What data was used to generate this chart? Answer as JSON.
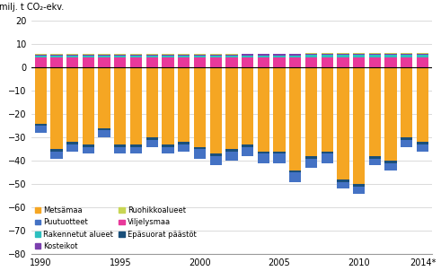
{
  "years": [
    1990,
    1991,
    1992,
    1993,
    1994,
    1995,
    1996,
    1997,
    1998,
    1999,
    2000,
    2001,
    2002,
    2003,
    2004,
    2005,
    2006,
    2007,
    2008,
    2009,
    2010,
    2011,
    2012,
    2013,
    2014
  ],
  "metsamaa": [
    -24,
    -35,
    -32,
    -33,
    -26,
    -33,
    -33,
    -30,
    -33,
    -32,
    -34,
    -37,
    -35,
    -33,
    -36,
    -36,
    -44,
    -38,
    -36,
    -48,
    -50,
    -38,
    -40,
    -30,
    -32
  ],
  "puutuotteet": [
    -3,
    -3,
    -3,
    -3,
    -3,
    -3,
    -3,
    -3,
    -3,
    -3,
    -4,
    -4,
    -4,
    -4,
    -4,
    -4,
    -4,
    -4,
    -4,
    -3,
    -3,
    -3,
    -3,
    -3,
    -3
  ],
  "rakennetut_alueet": [
    0.5,
    0.5,
    0.5,
    0.5,
    0.5,
    0.6,
    0.6,
    0.6,
    0.6,
    0.7,
    0.7,
    0.7,
    0.7,
    0.8,
    0.8,
    0.8,
    0.8,
    0.9,
    0.9,
    0.9,
    0.9,
    1.0,
    1.0,
    1.0,
    1.0
  ],
  "kosteikot": [
    0.5,
    0.5,
    0.5,
    0.5,
    0.5,
    0.5,
    0.5,
    0.5,
    0.5,
    0.5,
    0.5,
    0.5,
    0.5,
    0.5,
    0.5,
    0.5,
    0.5,
    0.5,
    0.5,
    0.5,
    0.5,
    0.5,
    0.5,
    0.5,
    0.5
  ],
  "ruohikkoalueet": [
    0.3,
    0.3,
    0.3,
    0.3,
    0.3,
    0.3,
    0.3,
    0.3,
    0.3,
    0.3,
    0.3,
    0.3,
    0.3,
    0.3,
    0.3,
    0.3,
    0.3,
    0.3,
    0.3,
    0.3,
    0.3,
    0.3,
    0.3,
    0.3,
    0.3
  ],
  "viljelysmaa": [
    4.5,
    4.5,
    4.5,
    4.5,
    4.5,
    4.5,
    4.5,
    4.5,
    4.5,
    4.5,
    4.5,
    4.5,
    4.5,
    4.5,
    4.5,
    4.5,
    4.5,
    4.5,
    4.5,
    4.5,
    4.5,
    4.5,
    4.5,
    4.5,
    4.5
  ],
  "epasuorat_paastot": [
    -1.0,
    -1.0,
    -1.0,
    -1.0,
    -1.0,
    -1.0,
    -1.0,
    -1.0,
    -1.0,
    -1.0,
    -1.0,
    -1.0,
    -1.0,
    -1.0,
    -1.0,
    -1.0,
    -1.0,
    -1.0,
    -1.0,
    -1.0,
    -1.0,
    -1.0,
    -1.0,
    -1.0,
    -1.0
  ],
  "colors": {
    "metsamaa": "#F5A623",
    "puutuotteet": "#4472C4",
    "rakennetut_alueet": "#2DBFBF",
    "kosteikot": "#7B3FAE",
    "ruohikkoalueet": "#C8D654",
    "viljelysmaa": "#E8399A",
    "epasuorat_paastot": "#1A4F7A"
  },
  "ylabel": "milj. t CO₂-ekv.",
  "ylim": [
    -80,
    20
  ],
  "yticks": [
    -80,
    -70,
    -60,
    -50,
    -40,
    -30,
    -20,
    -10,
    0,
    10,
    20
  ],
  "legend_labels": [
    "Metsämaa",
    "Puutuotteet",
    "Rakennetut alueet",
    "Kosteikot",
    "Ruohikkoalueet",
    "Viljelysmaa",
    "Epäsuorat päästöt"
  ],
  "last_year_label": "2014*"
}
